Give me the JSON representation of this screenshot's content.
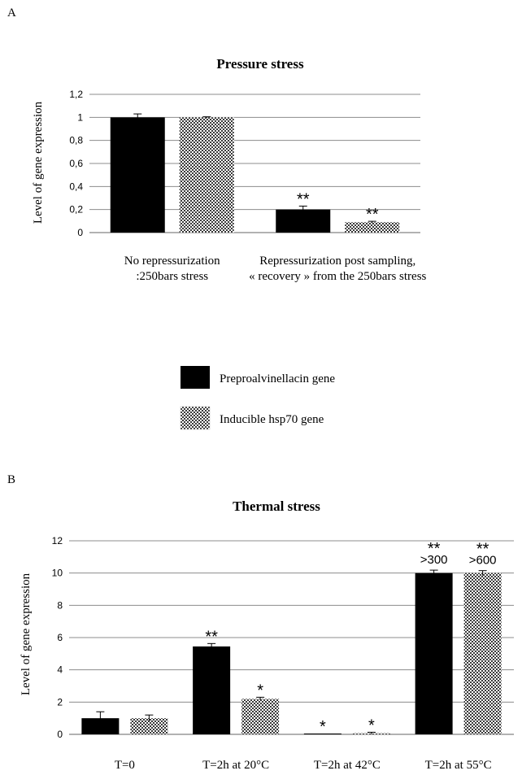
{
  "panels": {
    "a_label": "A",
    "b_label": "B"
  },
  "legend": {
    "items": [
      {
        "name": "Preproalvinellacin gene",
        "pattern": "solid"
      },
      {
        "name": "Inducible hsp70 gene",
        "pattern": "checker"
      }
    ]
  },
  "colors": {
    "solid": "#000000",
    "checker_dark": "#3a3a3a",
    "checker_light": "#ffffff",
    "grid": "#8c8c8c"
  },
  "chart_data": [
    {
      "type": "bar",
      "title": "Pressure stress",
      "xlabel": "",
      "ylabel": "Level of gene expression",
      "ylim": [
        0,
        1.2
      ],
      "ytick_values": [
        0,
        0.2,
        0.4,
        0.6,
        0.8,
        1,
        1.2
      ],
      "ytick_labels": [
        "0",
        "0,2",
        "0,4",
        "0,6",
        "0,8",
        "1",
        "1,2"
      ],
      "grid": true,
      "categories": [
        [
          "No repressurization",
          ":250bars stress"
        ],
        [
          "Repressurization post sampling,",
          "« recovery » from the 250bars stress"
        ]
      ],
      "series": [
        {
          "name": "Preproalvinellacin gene",
          "values": [
            1.0,
            0.2
          ],
          "errors": [
            0.03,
            0.03
          ],
          "significance": [
            "",
            "**"
          ],
          "notes": [
            "",
            ""
          ]
        },
        {
          "name": "Inducible hsp70 gene",
          "values": [
            1.0,
            0.09
          ],
          "errors": [
            0.005,
            0.008
          ],
          "significance": [
            "",
            "**"
          ],
          "notes": [
            "",
            ""
          ]
        }
      ]
    },
    {
      "type": "bar",
      "title": "Thermal stress",
      "xlabel": "",
      "ylabel": "Level of gene expression",
      "ylim": [
        0,
        12
      ],
      "ytick_values": [
        0,
        2,
        4,
        6,
        8,
        10,
        12
      ],
      "ytick_labels": [
        "0",
        "2",
        "4",
        "6",
        "8",
        "10",
        "12"
      ],
      "grid": true,
      "categories": [
        [
          "T=0"
        ],
        [
          "T=2h at 20°C"
        ],
        [
          "T=2h at 42°C"
        ],
        [
          "T=2h at 55°C"
        ]
      ],
      "series": [
        {
          "name": "Preproalvinellacin gene",
          "values": [
            1.0,
            5.45,
            0.04,
            10.0
          ],
          "errors": [
            0.4,
            0.18,
            0.0,
            0.18
          ],
          "significance": [
            "",
            "**",
            "*",
            "**"
          ],
          "notes": [
            "",
            "",
            "",
            ">300"
          ]
        },
        {
          "name": "Inducible hsp70 gene",
          "values": [
            1.0,
            2.2,
            0.07,
            10.0
          ],
          "errors": [
            0.2,
            0.1,
            0.06,
            0.15
          ],
          "significance": [
            "",
            "*",
            "*",
            "**"
          ],
          "notes": [
            "",
            "",
            "",
            ">600"
          ]
        }
      ]
    }
  ]
}
